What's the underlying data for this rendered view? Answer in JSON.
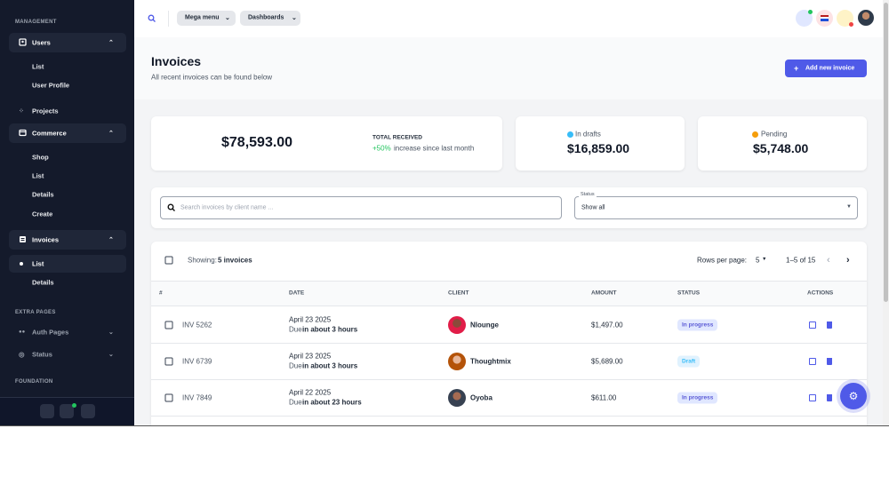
{
  "sidebar": {
    "management": "MANAGEMENT",
    "users": {
      "label": "Users",
      "children": [
        "List",
        "User Profile"
      ]
    },
    "projects": "Projects",
    "commerce": {
      "label": "Commerce",
      "children": [
        "Shop",
        "List",
        "Details",
        "Create"
      ]
    },
    "invoices": {
      "label": "Invoices",
      "children": [
        "List",
        "Details"
      ]
    },
    "extra_pages": "EXTRA PAGES",
    "extra_items": [
      "Auth Pages",
      "Status"
    ],
    "foundation": "FOUNDATION"
  },
  "topbar": {
    "menus": [
      "Mega menu",
      "Dashboards"
    ]
  },
  "header": {
    "title": "Invoices",
    "subtitle": "All recent invoices can be found below",
    "button": "Add new invoice"
  },
  "stats": {
    "total": {
      "amount": "$78,593.00",
      "label": "TOTAL RECEIVED",
      "change": "+50%",
      "note": "increase since last month"
    },
    "drafts": {
      "label": "In drafts",
      "amount": "$16,859.00"
    },
    "pending": {
      "label": "Pending",
      "amount": "$5,748.00"
    }
  },
  "filters": {
    "search_placeholder": "Search invoices by client name ...",
    "status_label": "Status",
    "status_value": "Show all"
  },
  "table": {
    "showing_label": "Showing:",
    "showing_count": "5 invoices",
    "rows_per_page_label": "Rows per page:",
    "rows_per_page": "5",
    "pagination": "1–5 of 15",
    "columns": [
      "#",
      "DATE",
      "CLIENT",
      "AMOUNT",
      "STATUS",
      "ACTIONS"
    ],
    "rows": [
      {
        "id": "INV 5262",
        "date": "April 23 2025",
        "due_label": "Due",
        "due": "in about 3 hours",
        "client": "Nlounge",
        "amount": "$1,497.00",
        "status": "In progress"
      },
      {
        "id": "INV 6739",
        "date": "April 23 2025",
        "due_label": "Due",
        "due": "in about 3 hours",
        "client": "Thoughtmix",
        "amount": "$5,689.00",
        "status": "Draft"
      },
      {
        "id": "INV 7849",
        "date": "April 22 2025",
        "due_label": "Due",
        "due": "in about 23 hours",
        "client": "Oyoba",
        "amount": "$611.00",
        "status": "In progress"
      }
    ]
  }
}
